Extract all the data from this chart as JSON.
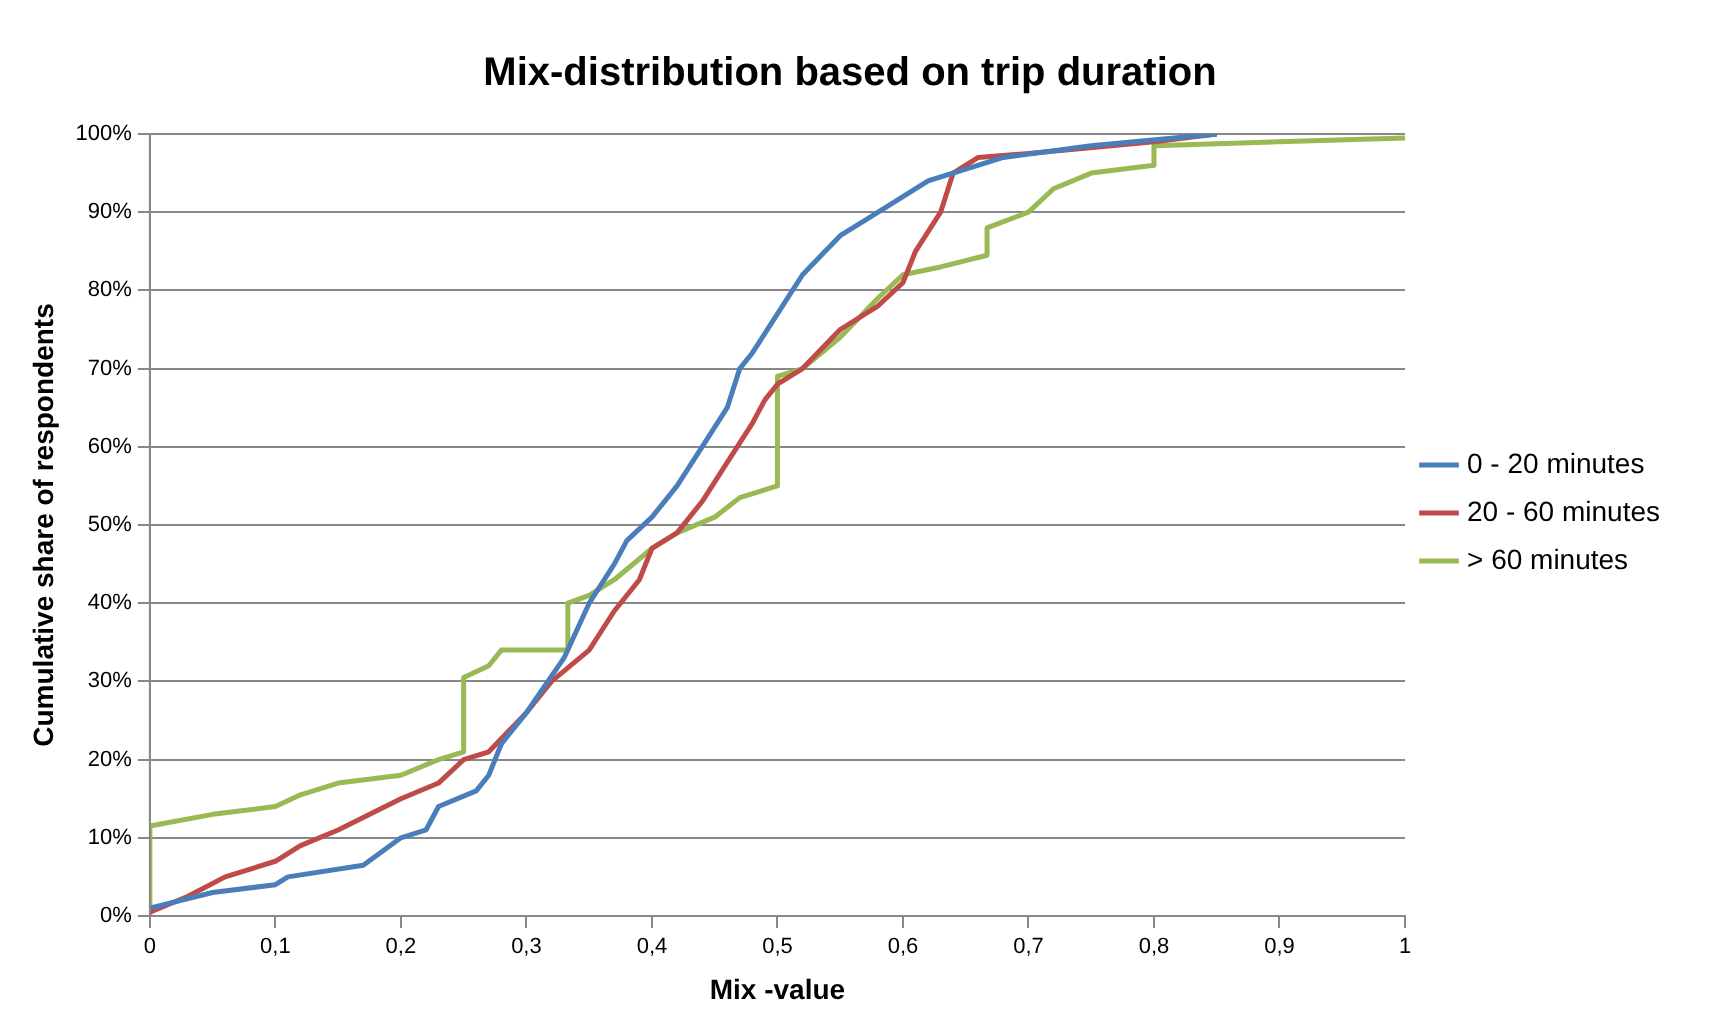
{
  "chart_data": {
    "type": "line",
    "title": "Mix-distribution based on trip duration",
    "xlabel": "Mix -value",
    "ylabel": "Cumulative share of respondents",
    "xlim": [
      0,
      1
    ],
    "xticks": [
      0,
      {
        "value": 0.1,
        "label": "0,1"
      },
      {
        "value": 0.2,
        "label": "0,2"
      },
      {
        "value": 0.3,
        "label": "0,3"
      },
      {
        "value": 0.4,
        "label": "0,4"
      },
      {
        "value": 0.5,
        "label": "0,5"
      },
      {
        "value": 0.6,
        "label": "0,6"
      },
      {
        "value": 0.7,
        "label": "0,7"
      },
      {
        "value": 0.8,
        "label": "0,8"
      },
      {
        "value": 0.9,
        "label": "0,9"
      },
      1
    ],
    "ylim": [
      0,
      100
    ],
    "yticks": [
      {
        "value": 0,
        "label": "0%"
      },
      {
        "value": 10,
        "label": "10%"
      },
      {
        "value": 20,
        "label": "20%"
      },
      {
        "value": 30,
        "label": "30%"
      },
      {
        "value": 40,
        "label": "40%"
      },
      {
        "value": 50,
        "label": "50%"
      },
      {
        "value": 60,
        "label": "60%"
      },
      {
        "value": 70,
        "label": "70%"
      },
      {
        "value": 80,
        "label": "80%"
      },
      {
        "value": 90,
        "label": "90%"
      },
      {
        "value": 100,
        "label": "100%"
      }
    ],
    "grid": "y",
    "legend": "right",
    "marker": "none",
    "line_style": "solid",
    "series": [
      {
        "name": "0 - 20 minutes",
        "color": "#4a7ebb",
        "x": [
          0,
          0.05,
          0.1,
          0.11,
          0.17,
          0.2,
          0.22,
          0.23,
          0.26,
          0.27,
          0.28,
          0.3,
          0.33,
          0.35,
          0.37,
          0.38,
          0.4,
          0.42,
          0.44,
          0.46,
          0.47,
          0.48,
          0.5,
          0.52,
          0.55,
          0.57,
          0.6,
          0.62,
          0.65,
          0.68,
          0.75,
          0.85
        ],
        "values": [
          1,
          3,
          4,
          5,
          6.5,
          10,
          11,
          14,
          16,
          18,
          22,
          26,
          33,
          40,
          45,
          48,
          51,
          55,
          60,
          65,
          70,
          72,
          77,
          82,
          87,
          89,
          92,
          94,
          95.5,
          97,
          98.5,
          100
        ]
      },
      {
        "name": "20 - 60 minutes",
        "color": "#be4b48",
        "x": [
          0,
          0.03,
          0.06,
          0.1,
          0.12,
          0.15,
          0.2,
          0.23,
          0.25,
          0.27,
          0.3,
          0.32,
          0.35,
          0.37,
          0.39,
          0.4,
          0.42,
          0.44,
          0.46,
          0.48,
          0.49,
          0.5,
          0.52,
          0.55,
          0.58,
          0.6,
          0.61,
          0.63,
          0.64,
          0.66,
          0.7,
          0.8,
          0.85
        ],
        "values": [
          0.5,
          2.5,
          5,
          7,
          9,
          11,
          15,
          17,
          20,
          21,
          26,
          30,
          34,
          39,
          43,
          47,
          49,
          53,
          58,
          63,
          66,
          68,
          70,
          75,
          78,
          81,
          85,
          90,
          95,
          97,
          97.5,
          99,
          100
        ]
      },
      {
        "name": "> 60 minutes",
        "color": "#98b954",
        "x": [
          0,
          0,
          0.05,
          0.1,
          0.12,
          0.15,
          0.2,
          0.23,
          0.25,
          0.25,
          0.27,
          0.28,
          0.333,
          0.333,
          0.35,
          0.37,
          0.4,
          0.42,
          0.45,
          0.47,
          0.5,
          0.5,
          0.52,
          0.55,
          0.58,
          0.6,
          0.63,
          0.667,
          0.667,
          0.7,
          0.72,
          0.75,
          0.8,
          0.8,
          1
        ],
        "values": [
          0,
          11.5,
          13,
          14,
          15.5,
          17,
          18,
          20,
          21,
          30.5,
          32,
          34,
          34,
          40,
          41,
          43,
          47,
          49,
          51,
          53.5,
          55,
          69,
          70,
          74,
          79,
          82,
          83,
          84.5,
          88,
          90,
          93,
          95,
          96,
          98.5,
          99.5
        ]
      }
    ]
  }
}
